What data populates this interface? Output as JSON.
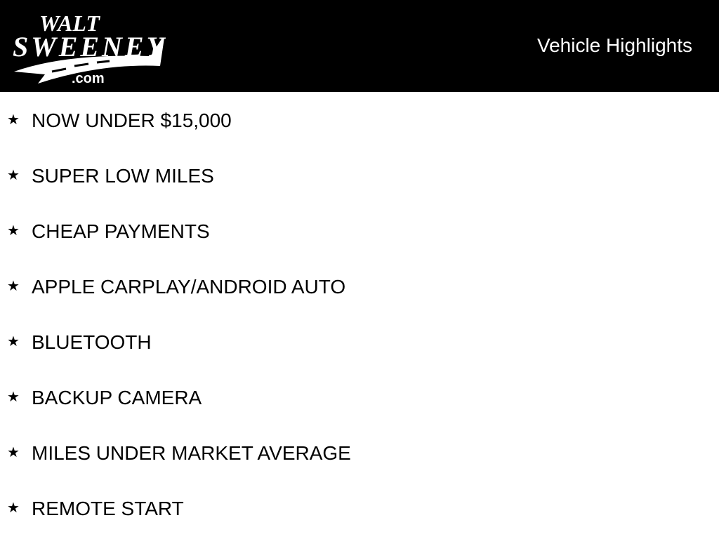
{
  "logo": {
    "text_top": "WALT",
    "text_main": "SWEENEY",
    "text_domain": ".com"
  },
  "header": {
    "title": "Vehicle Highlights"
  },
  "highlights": [
    {
      "label": "NOW UNDER $15,000"
    },
    {
      "label": "SUPER LOW MILES"
    },
    {
      "label": "CHEAP PAYMENTS"
    },
    {
      "label": "APPLE CARPLAY/ANDROID AUTO"
    },
    {
      "label": "BLUETOOTH"
    },
    {
      "label": "BACKUP CAMERA"
    },
    {
      "label": "MILES UNDER MARKET AVERAGE"
    },
    {
      "label": "REMOTE START"
    }
  ],
  "icons": {
    "bullet": "star-icon",
    "star_glyph": "★"
  },
  "colors": {
    "header_bg": "#000000",
    "header_text": "#ffffff",
    "body_text": "#000000"
  }
}
